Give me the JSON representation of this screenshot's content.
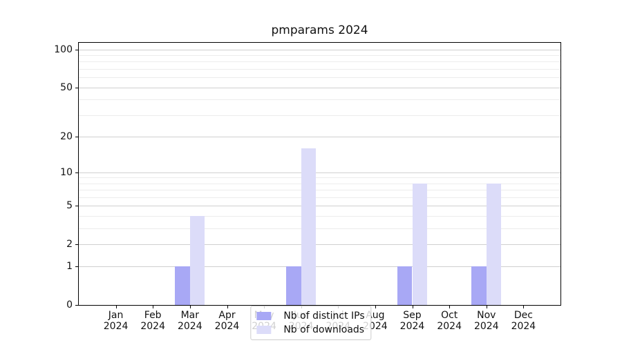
{
  "chart_data": {
    "type": "bar",
    "title": "pmparams 2024",
    "x_tick_year": "2024",
    "months": [
      "Jan",
      "Feb",
      "Mar",
      "Apr",
      "May",
      "Jun",
      "Jul",
      "Aug",
      "Sep",
      "Oct",
      "Nov",
      "Dec"
    ],
    "series": [
      {
        "name": "Nb of distinct IPs",
        "color": "#a8a8f5",
        "values": [
          0,
          0,
          1,
          0,
          0,
          1,
          0,
          0,
          1,
          0,
          1,
          0
        ]
      },
      {
        "name": "Nb of downloads",
        "color": "#dcdcf9",
        "values": [
          0,
          0,
          4,
          0,
          0,
          16,
          0,
          0,
          8,
          0,
          8,
          0
        ]
      }
    ],
    "yscale": "log1p",
    "ylim": [
      0,
      113
    ],
    "y_ticks_major": [
      0,
      1,
      2,
      5,
      10,
      20,
      50,
      100
    ],
    "y_ticks_minor": [
      3,
      4,
      6,
      7,
      8,
      9,
      30,
      40,
      60,
      70,
      80,
      90
    ],
    "grid": "on",
    "legend_position": "lower center",
    "colors": {
      "major_grid": "#cfcfcf",
      "minor_grid": "#ececec",
      "axis": "#000000",
      "text": "#111111",
      "background": "#ffffff"
    }
  }
}
